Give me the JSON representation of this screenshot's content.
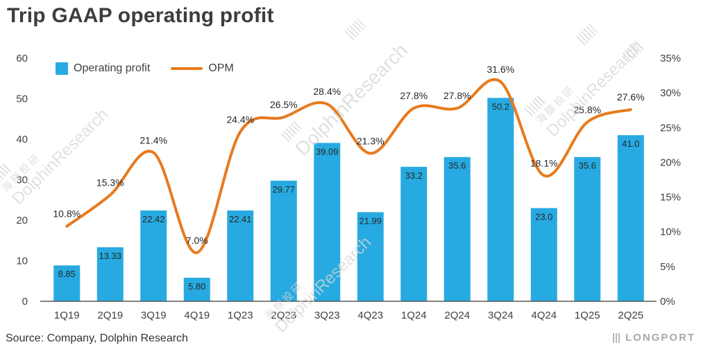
{
  "title": "Trip GAAP operating profit",
  "source": "Source: Company, Dolphin Research",
  "brand": "LONGPORT",
  "watermark": {
    "cn": "海豚投研",
    "en": "DolphinResearch"
  },
  "legend": {
    "bars": "Operating profit",
    "line": "OPM"
  },
  "colors": {
    "bar": "#27aae1",
    "line": "#e87a1d",
    "axis": "#595959",
    "tick_text": "#404040",
    "label_text": "#262626"
  },
  "chart_data": {
    "type": "bar",
    "note": "combo bar+line chart",
    "categories": [
      "1Q19",
      "2Q19",
      "3Q19",
      "4Q19",
      "1Q23",
      "2Q23",
      "3Q23",
      "4Q23",
      "1Q24",
      "2Q24",
      "3Q24",
      "4Q24",
      "1Q25",
      "2Q25"
    ],
    "series": [
      {
        "name": "Operating profit",
        "type": "bar",
        "axis": "left",
        "values": [
          8.85,
          13.33,
          22.42,
          5.8,
          22.41,
          29.77,
          39.09,
          21.99,
          33.2,
          35.6,
          50.2,
          23.0,
          35.6,
          41.0
        ],
        "labels": [
          "8.85",
          "13.33",
          "22.42",
          "5.80",
          "22.41",
          "29.77",
          "39.09",
          "21.99",
          "33.2",
          "35.6",
          "50.2",
          "23.0",
          "35.6",
          "41.0"
        ]
      },
      {
        "name": "OPM",
        "type": "line",
        "axis": "right",
        "values": [
          10.8,
          15.3,
          21.4,
          7.0,
          24.4,
          26.5,
          28.4,
          21.3,
          27.8,
          27.8,
          31.6,
          18.1,
          25.8,
          27.6
        ],
        "labels": [
          "10.8%",
          "15.3%",
          "21.4%",
          "7.0%",
          "24.4%",
          "26.5%",
          "28.4%",
          "21.3%",
          "27.8%",
          "27.8%",
          "31.6%",
          "18.1%",
          "25.8%",
          "27.6%"
        ]
      }
    ],
    "left_axis": {
      "min": 0,
      "max": 60,
      "ticks": [
        0,
        10,
        20,
        30,
        40,
        50,
        60
      ]
    },
    "right_axis": {
      "min": 0,
      "max": 35,
      "tick_step": 5,
      "ticks": [
        "0%",
        "5%",
        "10%",
        "15%",
        "20%",
        "25%",
        "30%",
        "35%"
      ]
    },
    "legend_position": "top-left",
    "grid": false,
    "title": "Trip GAAP operating profit"
  }
}
